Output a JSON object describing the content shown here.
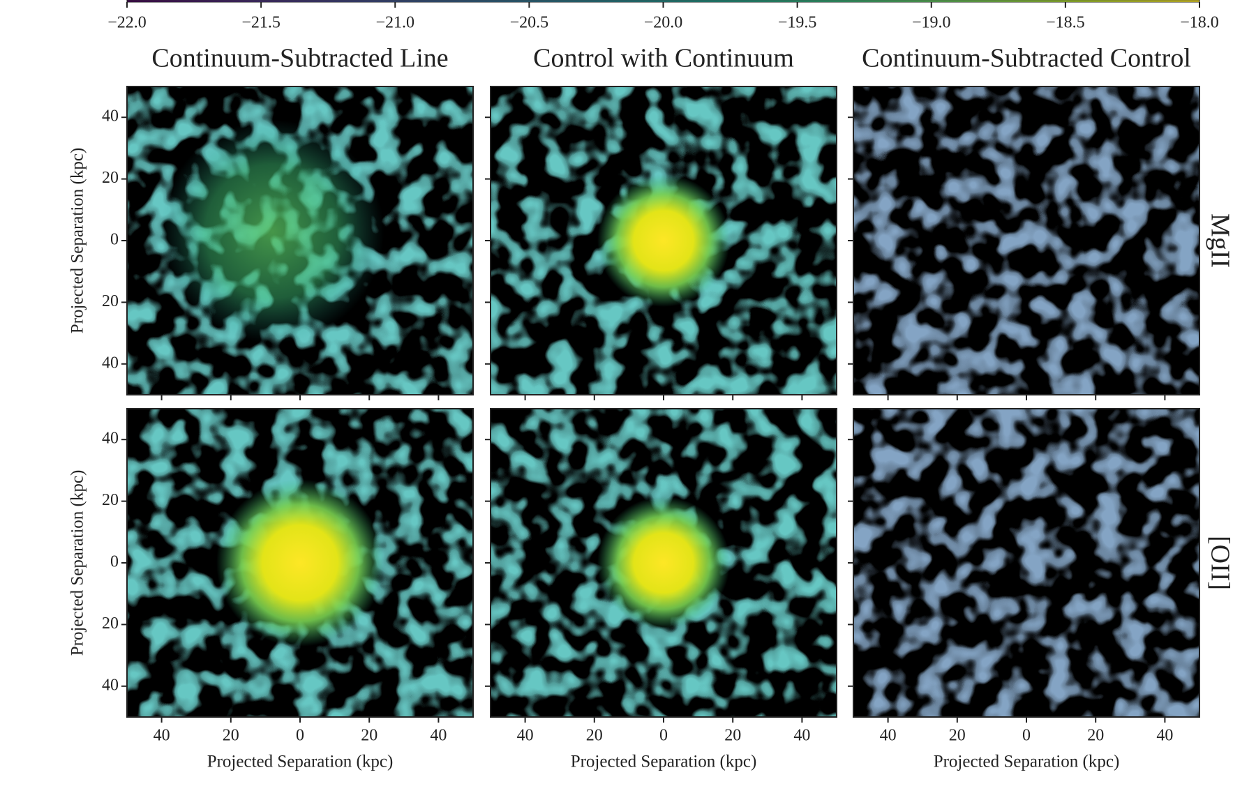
{
  "chart_data": {
    "type": "image",
    "colormap": "viridis",
    "colorbar": {
      "lim": [
        -22,
        -18
      ],
      "ticks": [
        {
          "value": -22,
          "label": "−22.0"
        },
        {
          "value": -21.5,
          "label": "−21.5"
        },
        {
          "value": -21,
          "label": "−21.0"
        },
        {
          "value": -20.5,
          "label": "−20.5"
        },
        {
          "value": -20,
          "label": "−20.0"
        },
        {
          "value": -19.5,
          "label": "−19.5"
        },
        {
          "value": -19,
          "label": "−19.0"
        },
        {
          "value": -18.5,
          "label": "−18.5"
        },
        {
          "value": -18,
          "label": "−18.0"
        }
      ]
    },
    "column_titles": [
      "Continuum-Subtracted Line",
      "Control with Continuum",
      "Continuum-Subtracted Control"
    ],
    "row_labels": [
      "MgII",
      "[OII]"
    ],
    "xlabel": "Projected Separation (kpc)",
    "ylabel": "Projected Separation (kpc)",
    "xlim": [
      -50,
      50
    ],
    "ylim": [
      -50,
      50
    ],
    "xticks": [
      {
        "value": -40,
        "label": "40"
      },
      {
        "value": -20,
        "label": "20"
      },
      0,
      20,
      40
    ],
    "yticks": [
      {
        "value": -40,
        "label": "40"
      },
      {
        "value": -20,
        "label": "20"
      },
      0,
      20,
      40
    ]
  }
}
